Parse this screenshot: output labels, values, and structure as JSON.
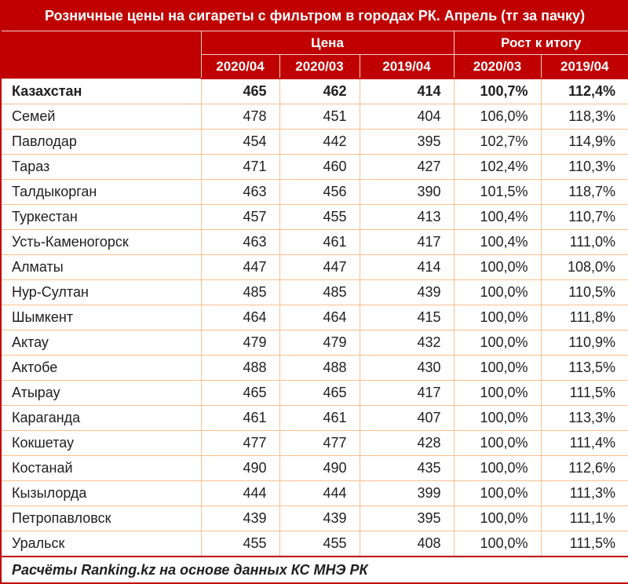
{
  "colors": {
    "header_bg": "#c00000",
    "header_line": "#f2cfc9",
    "grid_line": "#fabf8f",
    "text": "#1f1f1f",
    "header_text": "#ffffff"
  },
  "chart_data": {
    "type": "table",
    "title": "Розничные цены на сигареты с фильтром в городах РК. Апрель (тг за пачку)",
    "column_groups": [
      {
        "label": "Цена",
        "span": 3
      },
      {
        "label": "Рост к итогу",
        "span": 2
      }
    ],
    "columns": [
      "2020/04",
      "2020/03",
      "2019/04",
      "2020/03",
      "2019/04"
    ],
    "rows": [
      {
        "name": "Казахстан",
        "bold": true,
        "values": [
          "465",
          "462",
          "414",
          "100,7%",
          "112,4%"
        ]
      },
      {
        "name": "Семей",
        "bold": false,
        "values": [
          "478",
          "451",
          "404",
          "106,0%",
          "118,3%"
        ]
      },
      {
        "name": "Павлодар",
        "bold": false,
        "values": [
          "454",
          "442",
          "395",
          "102,7%",
          "114,9%"
        ]
      },
      {
        "name": "Тараз",
        "bold": false,
        "values": [
          "471",
          "460",
          "427",
          "102,4%",
          "110,3%"
        ]
      },
      {
        "name": "Талдыкорган",
        "bold": false,
        "values": [
          "463",
          "456",
          "390",
          "101,5%",
          "118,7%"
        ]
      },
      {
        "name": "Туркестан",
        "bold": false,
        "values": [
          "457",
          "455",
          "413",
          "100,4%",
          "110,7%"
        ]
      },
      {
        "name": "Усть-Каменогорск",
        "bold": false,
        "values": [
          "463",
          "461",
          "417",
          "100,4%",
          "111,0%"
        ]
      },
      {
        "name": "Алматы",
        "bold": false,
        "values": [
          "447",
          "447",
          "414",
          "100,0%",
          "108,0%"
        ]
      },
      {
        "name": "Нур-Султан",
        "bold": false,
        "values": [
          "485",
          "485",
          "439",
          "100,0%",
          "110,5%"
        ]
      },
      {
        "name": "Шымкент",
        "bold": false,
        "values": [
          "464",
          "464",
          "415",
          "100,0%",
          "111,8%"
        ]
      },
      {
        "name": "Актау",
        "bold": false,
        "values": [
          "479",
          "479",
          "432",
          "100,0%",
          "110,9%"
        ]
      },
      {
        "name": "Актобе",
        "bold": false,
        "values": [
          "488",
          "488",
          "430",
          "100,0%",
          "113,5%"
        ]
      },
      {
        "name": "Атырау",
        "bold": false,
        "values": [
          "465",
          "465",
          "417",
          "100,0%",
          "111,5%"
        ]
      },
      {
        "name": "Караганда",
        "bold": false,
        "values": [
          "461",
          "461",
          "407",
          "100,0%",
          "113,3%"
        ]
      },
      {
        "name": "Кокшетау",
        "bold": false,
        "values": [
          "477",
          "477",
          "428",
          "100,0%",
          "111,4%"
        ]
      },
      {
        "name": "Костанай",
        "bold": false,
        "values": [
          "490",
          "490",
          "435",
          "100,0%",
          "112,6%"
        ]
      },
      {
        "name": "Кызылорда",
        "bold": false,
        "values": [
          "444",
          "444",
          "399",
          "100,0%",
          "111,3%"
        ]
      },
      {
        "name": "Петропавловск",
        "bold": false,
        "values": [
          "439",
          "439",
          "395",
          "100,0%",
          "111,1%"
        ]
      },
      {
        "name": "Уральск",
        "bold": false,
        "values": [
          "455",
          "455",
          "408",
          "100,0%",
          "111,5%"
        ]
      }
    ],
    "footer": "Расчёты Ranking.kz на основе данных КС МНЭ РК"
  }
}
